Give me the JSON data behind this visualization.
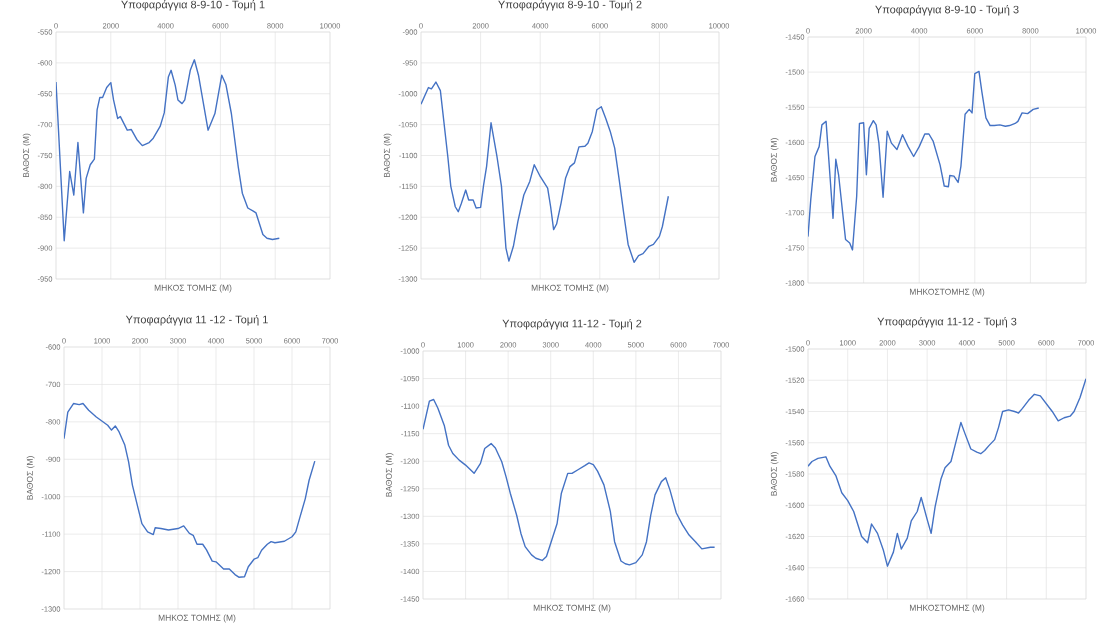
{
  "chart_data": [
    {
      "type": "line",
      "title": "Υποφαράγγια 8-9-10 - Τομή 1",
      "xlabel": "ΜΗΚΟΣ ΤΟΜΗΣ (Μ)",
      "ylabel": "ΒΑΘΟΣ (Μ)",
      "grid": true,
      "marker": "none",
      "xlim": [
        0,
        10000
      ],
      "xticks": [
        0,
        2000,
        4000,
        6000,
        8000,
        10000
      ],
      "ylim": [
        -950,
        -550
      ],
      "yticks": [
        -950,
        -900,
        -850,
        -800,
        -750,
        -700,
        -650,
        -600,
        -550
      ],
      "x": [
        0,
        300,
        400,
        500,
        650,
        800,
        1000,
        1100,
        1250,
        1400,
        1500,
        1600,
        1700,
        1850,
        2000,
        2100,
        2250,
        2350,
        2600,
        2750,
        2950,
        3150,
        3400,
        3550,
        3800,
        3950,
        4100,
        4200,
        4350,
        4450,
        4600,
        4700,
        4900,
        5050,
        5200,
        5550,
        5800,
        6050,
        6200,
        6400,
        6650,
        6800,
        7000,
        7200,
        7300,
        7550,
        7700,
        7900,
        8150
      ],
      "series": [
        {
          "color": "#4472c4",
          "values": [
            -631,
            -888,
            -832,
            -776,
            -814,
            -729,
            -843,
            -787,
            -765,
            -756,
            -676,
            -656,
            -656,
            -640,
            -632,
            -660,
            -690,
            -687,
            -709,
            -708,
            -724,
            -734,
            -729,
            -722,
            -703,
            -681,
            -623,
            -612,
            -636,
            -660,
            -666,
            -660,
            -612,
            -595,
            -620,
            -709,
            -682,
            -620,
            -635,
            -682,
            -768,
            -811,
            -835,
            -840,
            -843,
            -878,
            -884,
            -886,
            -884
          ]
        }
      ]
    },
    {
      "type": "line",
      "title": "Υποφαράγγια 8-9-10 - Τομή 2",
      "xlabel": "ΜΗΚΟΣ ΤΟΜΗΣ (Μ)",
      "ylabel": "ΒΑΘΟΣ (Μ)",
      "grid": true,
      "marker": "none",
      "xlim": [
        0,
        10000
      ],
      "xticks": [
        0,
        2000,
        4000,
        6000,
        8000,
        10000
      ],
      "ylim": [
        -1300,
        -900
      ],
      "yticks": [
        -1300,
        -1250,
        -1200,
        -1150,
        -1100,
        -1050,
        -1000,
        -950,
        -900
      ],
      "x": [
        0,
        250,
        350,
        500,
        650,
        900,
        1000,
        1150,
        1250,
        1350,
        1500,
        1600,
        1750,
        1850,
        2000,
        2100,
        2200,
        2350,
        2550,
        2700,
        2850,
        2950,
        3100,
        3250,
        3450,
        3650,
        3800,
        4000,
        4250,
        4350,
        4450,
        4550,
        4700,
        4850,
        5000,
        5150,
        5300,
        5500,
        5600,
        5750,
        5900,
        6050,
        6200,
        6350,
        6500,
        6650,
        6800,
        6950,
        7150,
        7300,
        7450,
        7650,
        7800,
        8000,
        8100,
        8300
      ],
      "series": [
        {
          "color": "#4472c4",
          "values": [
            -1017,
            -990,
            -992,
            -981,
            -995,
            -1102,
            -1150,
            -1183,
            -1191,
            -1178,
            -1156,
            -1172,
            -1172,
            -1185,
            -1184,
            -1148,
            -1118,
            -1047,
            -1102,
            -1150,
            -1250,
            -1271,
            -1247,
            -1207,
            -1164,
            -1142,
            -1115,
            -1134,
            -1153,
            -1183,
            -1220,
            -1211,
            -1177,
            -1137,
            -1118,
            -1112,
            -1086,
            -1085,
            -1080,
            -1061,
            -1026,
            -1021,
            -1040,
            -1061,
            -1088,
            -1139,
            -1193,
            -1244,
            -1273,
            -1262,
            -1259,
            -1247,
            -1244,
            -1231,
            -1215,
            -1166
          ]
        }
      ]
    },
    {
      "type": "line",
      "title": "Υποφαράγγια 8-9-10 -  Τομή 3",
      "xlabel": "ΜΗΚΟΣΤΟΜΗΣ (Μ)",
      "ylabel": "ΒΑΘΟΣ (Μ)",
      "grid": true,
      "marker": "none",
      "xlim": [
        0,
        10000
      ],
      "xticks": [
        0,
        2000,
        4000,
        6000,
        8000,
        10000
      ],
      "ylim": [
        -1800,
        -1450
      ],
      "yticks": [
        -1800,
        -1750,
        -1700,
        -1650,
        -1600,
        -1550,
        -1500,
        -1450
      ],
      "x": [
        0,
        100,
        250,
        400,
        500,
        650,
        800,
        900,
        1000,
        1100,
        1350,
        1500,
        1600,
        1750,
        1850,
        2000,
        2100,
        2200,
        2350,
        2450,
        2550,
        2700,
        2850,
        3000,
        3200,
        3400,
        3600,
        3800,
        4000,
        4200,
        4350,
        4500,
        4750,
        4900,
        5050,
        5100,
        5250,
        5400,
        5500,
        5650,
        5800,
        5900,
        6000,
        6150,
        6250,
        6400,
        6550,
        6700,
        6900,
        7100,
        7250,
        7450,
        7550,
        7700,
        7900,
        8100,
        8300
      ],
      "series": [
        {
          "color": "#4472c4",
          "values": [
            -1734,
            -1681,
            -1620,
            -1606,
            -1575,
            -1570,
            -1653,
            -1708,
            -1624,
            -1646,
            -1738,
            -1743,
            -1753,
            -1677,
            -1573,
            -1572,
            -1646,
            -1580,
            -1569,
            -1575,
            -1601,
            -1678,
            -1584,
            -1601,
            -1610,
            -1589,
            -1606,
            -1620,
            -1606,
            -1588,
            -1588,
            -1598,
            -1632,
            -1662,
            -1663,
            -1647,
            -1648,
            -1657,
            -1634,
            -1560,
            -1553,
            -1558,
            -1502,
            -1499,
            -1527,
            -1565,
            -1576,
            -1576,
            -1575,
            -1577,
            -1576,
            -1573,
            -1570,
            -1558,
            -1559,
            -1553,
            -1551
          ]
        }
      ]
    },
    {
      "type": "line",
      "title": "Υποφαράγγια 11 -12 - Τομή 1",
      "xlabel": "ΜΗΚΟΣ ΤΟΜΗΣ (Μ)",
      "ylabel": "ΒΑΘΟΣ (Μ)",
      "grid": true,
      "marker": "none",
      "xlim": [
        0,
        7000
      ],
      "xticks": [
        0,
        1000,
        2000,
        3000,
        4000,
        5000,
        6000,
        7000
      ],
      "ylim": [
        -1300,
        -600
      ],
      "yticks": [
        -1300,
        -1200,
        -1100,
        -1000,
        -900,
        -800,
        -700,
        -600
      ],
      "x": [
        0,
        100,
        250,
        400,
        500,
        650,
        850,
        1000,
        1150,
        1250,
        1350,
        1450,
        1600,
        1700,
        1800,
        1950,
        2050,
        2200,
        2350,
        2400,
        2550,
        2750,
        3000,
        3150,
        3300,
        3400,
        3500,
        3650,
        3750,
        3900,
        4000,
        4200,
        4350,
        4500,
        4600,
        4750,
        4850,
        5000,
        5100,
        5200,
        5350,
        5450,
        5550,
        5800,
        6000,
        6100,
        6200,
        6350,
        6450,
        6600
      ],
      "series": [
        {
          "color": "#4472c4",
          "values": [
            -845,
            -774,
            -751,
            -754,
            -751,
            -769,
            -787,
            -798,
            -809,
            -822,
            -811,
            -827,
            -862,
            -907,
            -969,
            -1031,
            -1072,
            -1094,
            -1101,
            -1083,
            -1085,
            -1089,
            -1085,
            -1078,
            -1098,
            -1103,
            -1127,
            -1127,
            -1142,
            -1172,
            -1174,
            -1193,
            -1193,
            -1208,
            -1215,
            -1214,
            -1187,
            -1167,
            -1163,
            -1143,
            -1127,
            -1120,
            -1123,
            -1119,
            -1107,
            -1094,
            -1058,
            -1005,
            -956,
            -905
          ]
        }
      ]
    },
    {
      "type": "line",
      "title": "Υποφαράγγια 11-12 - Τομή 2",
      "xlabel": "ΜΗΚΟΣ ΤΟΜΗΣ (Μ)",
      "ylabel": "ΒΑΘΟΣ (Μ)",
      "grid": true,
      "marker": "none",
      "xlim": [
        0,
        7000
      ],
      "xticks": [
        0,
        1000,
        2000,
        3000,
        4000,
        5000,
        6000,
        7000
      ],
      "ylim": [
        -1450,
        -1000
      ],
      "yticks": [
        -1450,
        -1400,
        -1350,
        -1300,
        -1250,
        -1200,
        -1150,
        -1100,
        -1050,
        -1000
      ],
      "x": [
        0,
        150,
        250,
        350,
        500,
        600,
        700,
        850,
        1000,
        1200,
        1350,
        1450,
        1600,
        1700,
        1850,
        1950,
        2050,
        2200,
        2300,
        2400,
        2550,
        2650,
        2800,
        2900,
        3000,
        3150,
        3250,
        3400,
        3500,
        3650,
        3800,
        3900,
        4000,
        4100,
        4250,
        4400,
        4500,
        4650,
        4750,
        4850,
        5000,
        5150,
        5250,
        5350,
        5450,
        5600,
        5700,
        5800,
        5950,
        6100,
        6250,
        6400,
        6550,
        6750,
        6850
      ],
      "series": [
        {
          "color": "#4472c4",
          "values": [
            -1142,
            -1091,
            -1088,
            -1104,
            -1135,
            -1171,
            -1186,
            -1198,
            -1207,
            -1222,
            -1204,
            -1177,
            -1168,
            -1176,
            -1201,
            -1228,
            -1258,
            -1298,
            -1331,
            -1355,
            -1370,
            -1376,
            -1380,
            -1373,
            -1349,
            -1313,
            -1258,
            -1222,
            -1222,
            -1215,
            -1208,
            -1203,
            -1206,
            -1218,
            -1243,
            -1291,
            -1346,
            -1381,
            -1386,
            -1388,
            -1384,
            -1370,
            -1346,
            -1298,
            -1261,
            -1237,
            -1230,
            -1252,
            -1294,
            -1316,
            -1334,
            -1346,
            -1359,
            -1356,
            -1356
          ]
        }
      ]
    },
    {
      "type": "line",
      "title": "Υποφαράγγια 11-12 - Τομή 3",
      "xlabel": "ΜΗΚΟΣΤΟΜΗΣ (Μ)",
      "ylabel": "ΒΑΘΟΣ (Μ)",
      "grid": true,
      "marker": "none",
      "xlim": [
        0,
        7000
      ],
      "xticks": [
        0,
        1000,
        2000,
        3000,
        4000,
        5000,
        6000,
        7000
      ],
      "ylim": [
        -1660,
        -1500
      ],
      "yticks": [
        -1660,
        -1640,
        -1620,
        -1600,
        -1580,
        -1560,
        -1540,
        -1520,
        -1500
      ],
      "x": [
        0,
        100,
        250,
        450,
        550,
        700,
        850,
        1000,
        1150,
        1350,
        1500,
        1600,
        1750,
        1900,
        2000,
        2150,
        2250,
        2350,
        2500,
        2600,
        2750,
        2850,
        3000,
        3100,
        3200,
        3350,
        3450,
        3600,
        3700,
        3850,
        3950,
        4100,
        4250,
        4350,
        4450,
        4550,
        4700,
        4800,
        4900,
        5050,
        5200,
        5300,
        5400,
        5550,
        5700,
        5850,
        6000,
        6150,
        6300,
        6450,
        6600,
        6700,
        6850,
        7000
      ],
      "series": [
        {
          "color": "#4472c4",
          "values": [
            -1575,
            -1572,
            -1570,
            -1569,
            -1575,
            -1581,
            -1592,
            -1597,
            -1604,
            -1620,
            -1624,
            -1612,
            -1618,
            -1629,
            -1639,
            -1630,
            -1618,
            -1628,
            -1621,
            -1610,
            -1604,
            -1595,
            -1609,
            -1618,
            -1601,
            -1583,
            -1576,
            -1572,
            -1562,
            -1547,
            -1554,
            -1564,
            -1566,
            -1567,
            -1565,
            -1562,
            -1558,
            -1550,
            -1540,
            -1539,
            -1540,
            -1541,
            -1538,
            -1533,
            -1529,
            -1530,
            -1535,
            -1540,
            -1546,
            -1544,
            -1543,
            -1540,
            -1531,
            -1519
          ]
        }
      ]
    }
  ]
}
